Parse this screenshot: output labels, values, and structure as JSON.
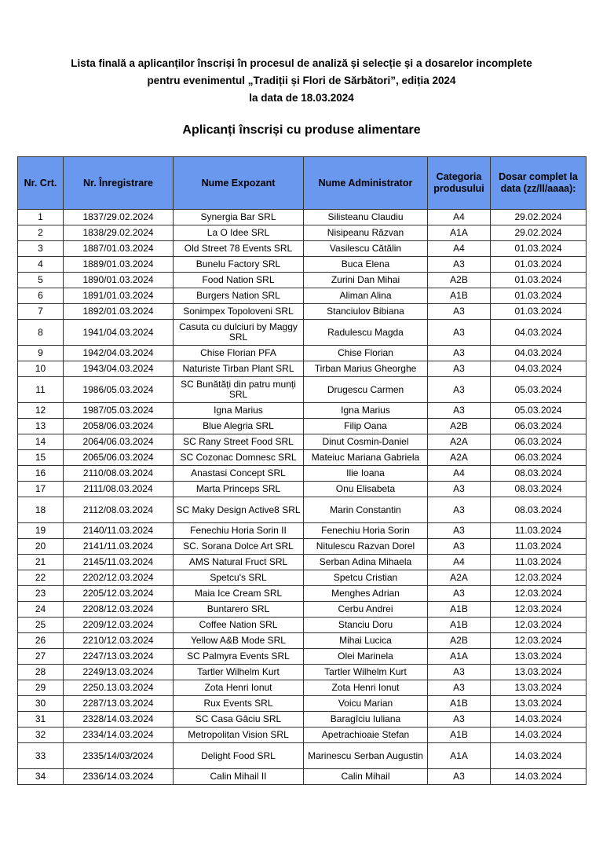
{
  "document": {
    "title_lines": [
      "Lista finală a aplicanților înscriși în procesul de analiză și selecție și a dosarelor incomplete",
      "pentru evenimentul „Tradiții și Flori de Sărbători”, ediția 2024",
      "la data de 18.03.2024"
    ],
    "subtitle": "Aplicanți înscriși cu produse alimentare",
    "header_color": "#6a98ee"
  },
  "table": {
    "columns": [
      "Nr. Crt.",
      "Nr. Înregistrare",
      "Nume Expozant",
      "Nume Administrator",
      "Categoria produsului",
      "Dosar complet la data (zz/ll/aaaa):"
    ],
    "rows": [
      [
        "1",
        "1837/29.02.2024",
        "Synergia Bar SRL",
        "Silisteanu Claudiu",
        "A4",
        "29.02.2024"
      ],
      [
        "2",
        "1838/29.02.2024",
        "La O Idee SRL",
        "Nisipeanu Răzvan",
        "A1A",
        "29.02.2024"
      ],
      [
        "3",
        "1887/01.03.2024",
        "Old Street 78 Events SRL",
        "Vasilescu Cătălin",
        "A4",
        "01.03.2024"
      ],
      [
        "4",
        "1889/01.03.2024",
        "Bunelu Factory SRL",
        "Buca Elena",
        "A3",
        "01.03.2024"
      ],
      [
        "5",
        "1890/01.03.2024",
        "Food Nation SRL",
        "Zurini Dan Mihai",
        "A2B",
        "01.03.2024"
      ],
      [
        "6",
        "1891/01.03.2024",
        "Burgers Nation SRL",
        "Aliman Alina",
        "A1B",
        "01.03.2024"
      ],
      [
        "7",
        "1892/01.03.2024",
        "Sonimpex Topoloveni SRL",
        "Stanciulov Bibiana",
        "A3",
        "01.03.2024"
      ],
      [
        "8",
        "1941/04.03.2024",
        "Casuta cu dulciuri by Maggy SRL",
        "Radulescu Magda",
        "A3",
        "04.03.2024"
      ],
      [
        "9",
        "1942/04.03.2024",
        "Chise Florian PFA",
        "Chise Florian",
        "A3",
        "04.03.2024"
      ],
      [
        "10",
        "1943/04.03.2024",
        "Naturiste Tirban Plant SRL",
        "Tirban Marius Gheorghe",
        "A3",
        "04.03.2024"
      ],
      [
        "11",
        "1986/05.03.2024",
        "SC Bunătăți din patru munți SRL",
        "Drugescu Carmen",
        "A3",
        "05.03.2024"
      ],
      [
        "12",
        "1987/05.03.2024",
        "Igna Marius",
        "Igna Marius",
        "A3",
        "05.03.2024"
      ],
      [
        "13",
        "2058/06.03.2024",
        "Blue Alegria SRL",
        "Filip Oana",
        "A2B",
        "06.03.2024"
      ],
      [
        "14",
        "2064/06.03.2024",
        "SC Rany Street Food SRL",
        "Dinut Cosmin-Daniel",
        "A2A",
        "06.03.2024"
      ],
      [
        "15",
        "2065/06.03.2024",
        "SC Cozonac Domnesc SRL",
        "Mateiuc Mariana Gabriela",
        "A2A",
        "06.03.2024"
      ],
      [
        "16",
        "2110/08.03.2024",
        "Anastasi Concept SRL",
        "Ilie Ioana",
        "A4",
        "08.03.2024"
      ],
      [
        "17",
        "2111/08.03.2024",
        "Marta Princeps SRL",
        "Onu Elisabeta",
        "A3",
        "08.03.2024"
      ],
      [
        "18",
        "2112/08.03.2024",
        "SC Maky Design Active8 SRL",
        "Marin Constantin",
        "A3",
        "08.03.2024"
      ],
      [
        "19",
        "2140/11.03.2024",
        "Fenechiu Horia Sorin II",
        "Fenechiu Horia Sorin",
        "A3",
        "11.03.2024"
      ],
      [
        "20",
        "2141/11.03.2024",
        "SC. Sorana Dolce Art SRL",
        "Nitulescu Razvan Dorel",
        "A3",
        "11.03.2024"
      ],
      [
        "21",
        "2145/11.03.2024",
        "AMS Natural Fruct SRL",
        "Serban Adina Mihaela",
        "A4",
        "11.03.2024"
      ],
      [
        "22",
        "2202/12.03.2024",
        "Spetcu's SRL",
        "Spetcu Cristian",
        "A2A",
        "12.03.2024"
      ],
      [
        "23",
        "2205/12.03.2024",
        "Maia Ice Cream SRL",
        "Menghes Adrian",
        "A3",
        "12.03.2024"
      ],
      [
        "24",
        "2208/12.03.2024",
        "Buntarero SRL",
        "Cerbu Andrei",
        "A1B",
        "12.03.2024"
      ],
      [
        "25",
        "2209/12.03.2024",
        "Coffee Nation SRL",
        "Stanciu Doru",
        "A1B",
        "12.03.2024"
      ],
      [
        "26",
        "2210/12.03.2024",
        "Yellow A&B Mode SRL",
        "Mihai Lucica",
        "A2B",
        "12.03.2024"
      ],
      [
        "27",
        "2247/13.03.2024",
        "SC Palmyra Events SRL",
        "Olei Marinela",
        "A1A",
        "13.03.2024"
      ],
      [
        "28",
        "2249/13.03.2024",
        "Tartler Wilhelm Kurt",
        "Tartler Wilhelm Kurt",
        "A3",
        "13.03.2024"
      ],
      [
        "29",
        "2250.13.03.2024",
        "Zota Henri Ionut",
        "Zota Henri Ionut",
        "A3",
        "13.03.2024"
      ],
      [
        "30",
        "2287/13.03.2024",
        "Rux Events SRL",
        "Voicu Marian",
        "A1B",
        "13.03.2024"
      ],
      [
        "31",
        "2328/14.03.2024",
        "SC Casa Gâciu SRL",
        "Baragîciu Iuliana",
        "A3",
        "14.03.2024"
      ],
      [
        "32",
        "2334/14.03.2024",
        "Metropolitan Vision SRL",
        "Apetrachioaie Stefan",
        "A1B",
        "14.03.2024"
      ],
      [
        "33",
        "2335/14/03/2024",
        "Delight Food SRL",
        "Marinescu Serban Augustin",
        "A1A",
        "14.03.2024"
      ],
      [
        "34",
        "2336/14.03.2024",
        "Calin Mihail II",
        "Calin Mihail",
        "A3",
        "14.03.2024"
      ]
    ]
  }
}
